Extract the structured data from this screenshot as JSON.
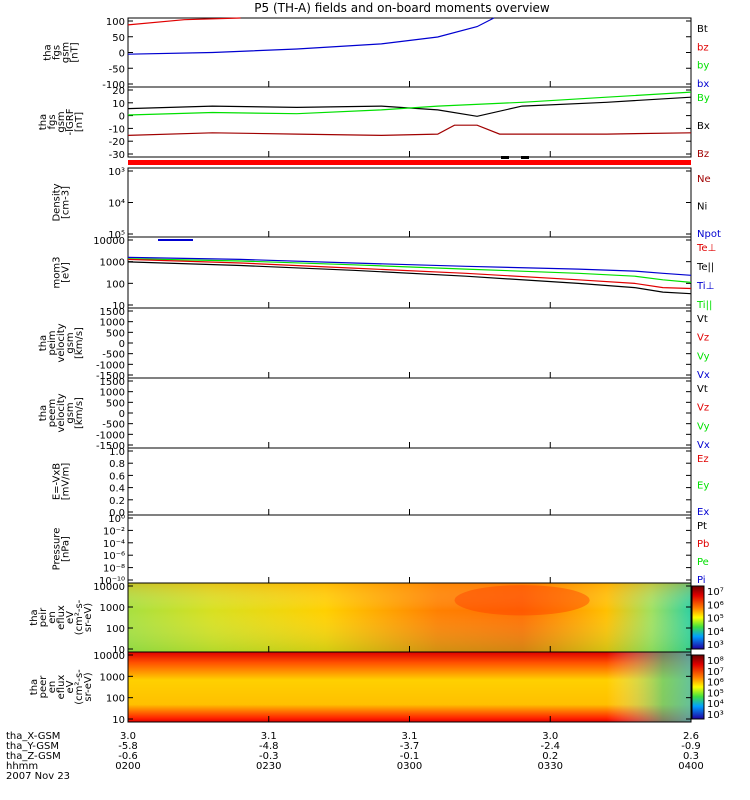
{
  "title": "P5 (TH-A) fields and on-board moments overview",
  "colors": {
    "black": "#000000",
    "red": "#e00000",
    "green": "#00e000",
    "blue": "#0000d0",
    "darkred": "#a00000"
  },
  "footer": {
    "row_labels": [
      "tha_X-GSM",
      "tha_Y-GSM",
      "tha_Z-GSM",
      "hhmm",
      "2007 Nov 23"
    ],
    "columns": [
      {
        "x": "3.0",
        "y": "-5.8",
        "z": "-0.6",
        "t": "0200"
      },
      {
        "x": "3.1",
        "y": "-4.8",
        "z": "-0.3",
        "t": "0230"
      },
      {
        "x": "3.1",
        "y": "-3.7",
        "z": "-0.1",
        "t": "0300"
      },
      {
        "x": "3.0",
        "y": "-2.4",
        "z": "0.2",
        "t": "0330"
      },
      {
        "x": "2.6",
        "y": "-0.9",
        "z": "0.3",
        "t": "0400"
      }
    ]
  },
  "chart_data": [
    {
      "type": "line",
      "ylabel": [
        "tha",
        "fgs",
        "gsm",
        "[nT]"
      ],
      "yticks": [
        "100",
        "50",
        "0",
        "-50",
        "-100"
      ],
      "ylim": [
        -100,
        100
      ],
      "legend": [
        {
          "label": "Bt",
          "color": "#000000"
        },
        {
          "label": "bz",
          "color": "#e00000"
        },
        {
          "label": "by",
          "color": "#00e000"
        },
        {
          "label": "bx",
          "color": "#0000d0"
        }
      ],
      "series": [
        {
          "name": "bz",
          "color": "#e00000",
          "x": [
            0,
            0.1,
            0.2
          ],
          "y": [
            80,
            95,
            115
          ]
        },
        {
          "name": "bx",
          "color": "#0000d0",
          "x": [
            0,
            0.15,
            0.3,
            0.45,
            0.55,
            0.62,
            0.65
          ],
          "y": [
            -5,
            0,
            10,
            25,
            45,
            75,
            110
          ]
        }
      ]
    },
    {
      "type": "line",
      "ylabel": [
        "tha",
        "fgs",
        "gsm",
        "-IGRF",
        "[nT]"
      ],
      "yticks": [
        "20",
        "10",
        "0",
        "-10",
        "-20",
        "-30"
      ],
      "ylim": [
        -35,
        20
      ],
      "legend": [
        {
          "label": "By",
          "color": "#00e000"
        },
        {
          "label": "Bx",
          "color": "#000000"
        },
        {
          "label": "Bz",
          "color": "#a00000"
        }
      ],
      "series": [
        {
          "name": "Bx",
          "color": "#000000",
          "x": [
            0,
            0.15,
            0.3,
            0.45,
            0.55,
            0.62,
            0.7,
            0.85,
            1.0
          ],
          "y": [
            3,
            5,
            4,
            5,
            2,
            -3,
            5,
            8,
            12
          ]
        },
        {
          "name": "By",
          "color": "#00e000",
          "x": [
            0,
            0.15,
            0.3,
            0.45,
            0.55,
            0.7,
            0.85,
            1.0
          ],
          "y": [
            -2,
            0,
            -1,
            2,
            5,
            8,
            12,
            16
          ]
        },
        {
          "name": "Bz",
          "color": "#a00000",
          "x": [
            0,
            0.15,
            0.3,
            0.45,
            0.55,
            0.58,
            0.62,
            0.66,
            0.85,
            1.0
          ],
          "y": [
            -18,
            -16,
            -17,
            -18,
            -17,
            -10,
            -10,
            -17,
            -17,
            -16
          ]
        }
      ]
    },
    {
      "type": "line",
      "ylabel": [
        "Density",
        "[cm-3]"
      ],
      "yticks": [
        "10³",
        "10⁴",
        "10⁵"
      ],
      "legend": [
        {
          "label": "Ne",
          "color": "#a00000"
        },
        {
          "label": "Ni",
          "color": "#000000"
        },
        {
          "label": "Npot",
          "color": "#0000d0"
        }
      ],
      "series": []
    },
    {
      "type": "line",
      "ylabel": [
        "mom3",
        "[eV]"
      ],
      "yticks": [
        "10000",
        "1000",
        "100",
        "10"
      ],
      "ylog": true,
      "ylim": [
        5,
        15000
      ],
      "legend": [
        {
          "label": "Te⊥",
          "color": "#e00000"
        },
        {
          "label": "Te||",
          "color": "#000000"
        },
        {
          "label": "Ti⊥",
          "color": "#0000d0"
        },
        {
          "label": "Ti||",
          "color": "#00e000"
        }
      ],
      "series": [
        {
          "name": "Ti⊥",
          "color": "#0000d0",
          "x": [
            0,
            0.2,
            0.4,
            0.6,
            0.8,
            0.9,
            0.95,
            1.0
          ],
          "y": [
            1500,
            1200,
            800,
            550,
            400,
            320,
            250,
            200
          ]
        },
        {
          "name": "Ti||",
          "color": "#00e000",
          "x": [
            0,
            0.2,
            0.4,
            0.6,
            0.8,
            0.9,
            0.95,
            1.0
          ],
          "y": [
            1300,
            1000,
            650,
            400,
            250,
            180,
            120,
            90
          ]
        },
        {
          "name": "Te⊥",
          "color": "#e00000",
          "x": [
            0,
            0.2,
            0.4,
            0.6,
            0.8,
            0.9,
            0.95,
            1.0
          ],
          "y": [
            1200,
            800,
            450,
            250,
            120,
            80,
            50,
            45
          ]
        },
        {
          "name": "Te||",
          "color": "#000000",
          "x": [
            0,
            0.2,
            0.4,
            0.6,
            0.8,
            0.9,
            0.95,
            1.0
          ],
          "y": [
            900,
            600,
            350,
            180,
            80,
            50,
            30,
            25
          ]
        }
      ]
    },
    {
      "type": "line",
      "ylabel": [
        "tha",
        "peim",
        "velocity",
        "gsm",
        "[km/s]"
      ],
      "yticks": [
        "1500",
        "1000",
        "500",
        "0",
        "-500",
        "-1000",
        "-1500"
      ],
      "legend": [
        {
          "label": "Vt",
          "color": "#000000"
        },
        {
          "label": "Vz",
          "color": "#e00000"
        },
        {
          "label": "Vy",
          "color": "#00e000"
        },
        {
          "label": "Vx",
          "color": "#0000d0"
        }
      ],
      "series": []
    },
    {
      "type": "line",
      "ylabel": [
        "tha",
        "peem",
        "velocity",
        "gsm",
        "[km/s]"
      ],
      "yticks": [
        "1500",
        "1000",
        "500",
        "0",
        "-500",
        "-1000",
        "-1500"
      ],
      "legend": [
        {
          "label": "Vt",
          "color": "#000000"
        },
        {
          "label": "Vz",
          "color": "#e00000"
        },
        {
          "label": "Vy",
          "color": "#00e000"
        },
        {
          "label": "Vx",
          "color": "#0000d0"
        }
      ],
      "series": []
    },
    {
      "type": "line",
      "ylabel": [
        "E=-VxB",
        "[mV/m]"
      ],
      "yticks": [
        "1.0",
        "0.8",
        "0.6",
        "0.4",
        "0.2",
        "0.0"
      ],
      "legend": [
        {
          "label": "Ez",
          "color": "#e00000"
        },
        {
          "label": "Ey",
          "color": "#00e000"
        },
        {
          "label": "Ex",
          "color": "#0000d0"
        }
      ],
      "series": []
    },
    {
      "type": "line",
      "ylabel": [
        "Pressure",
        "[nPa]"
      ],
      "yticks": [
        "10⁰",
        "10⁻²",
        "10⁻⁴",
        "10⁻⁶",
        "10⁻⁸",
        "10⁻¹⁰"
      ],
      "legend": [
        {
          "label": "Pt",
          "color": "#000000"
        },
        {
          "label": "Pb",
          "color": "#e00000"
        },
        {
          "label": "Pe",
          "color": "#00e000"
        },
        {
          "label": "Pi",
          "color": "#0000d0"
        }
      ],
      "series": []
    },
    {
      "type": "heatmap",
      "ylabel": [
        "tha",
        "peir",
        "en",
        "eflux",
        "eV",
        "(cm²-s-",
        "sr-eV)"
      ],
      "yticks": [
        "10000",
        "1000",
        "100",
        "10"
      ],
      "colorbar_ticks": [
        "10⁷",
        "10⁶",
        "10⁵",
        "10⁴",
        "10³"
      ]
    },
    {
      "type": "heatmap",
      "ylabel": [
        "tha",
        "peer",
        "en",
        "eflux",
        "eV",
        "(cm²-s-",
        "sr-eV)"
      ],
      "yticks": [
        "10000",
        "1000",
        "100",
        "10"
      ],
      "colorbar_ticks": [
        "10⁸",
        "10⁷",
        "10⁶",
        "10⁵",
        "10⁴",
        "10³"
      ]
    }
  ]
}
